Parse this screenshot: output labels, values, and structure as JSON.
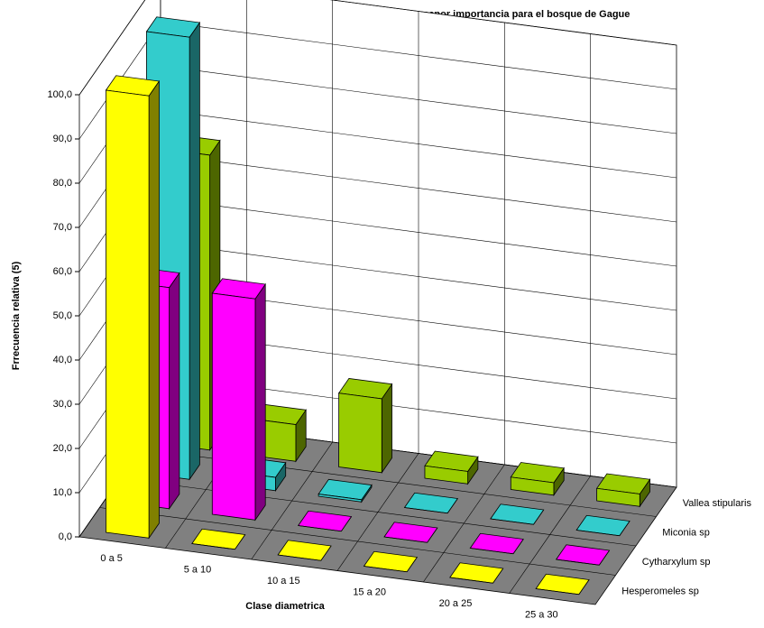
{
  "chart_data": {
    "type": "bar3d",
    "title": "Gráfico Nº 7 Distribucion diametrica de las 4 especies de menor importancia para el bosque de Gague",
    "x_label": "Clase diametrica",
    "y_label": "Frrecuencia relativa (5)",
    "categories": [
      "0 a 5",
      "5 a 10",
      "10 a 15",
      "15 a 20",
      "20 a 25",
      "25 a 30"
    ],
    "series": [
      {
        "name": "Hesperomeles sp",
        "color": "#ffff00",
        "side_color": "#808000",
        "values": [
          100,
          0,
          0,
          0,
          0,
          0
        ]
      },
      {
        "name": "Cytharxylum sp",
        "color": "#ff00ff",
        "side_color": "#800080",
        "values": [
          50,
          50,
          0,
          0,
          0,
          0
        ]
      },
      {
        "name": "Miconia sp",
        "color": "#33cccc",
        "side_color": "#1a6666",
        "values": [
          100,
          3,
          0.5,
          0,
          0,
          0
        ]
      },
      {
        "name": "Vallea stipularis",
        "color": "#99cc00",
        "side_color": "#4d6600",
        "values": [
          66.7,
          8.3,
          16.7,
          2.8,
          2.8,
          2.8
        ]
      }
    ],
    "ylim": [
      0,
      100
    ],
    "yticks": [
      {
        "value": 0,
        "label": "0,0"
      },
      {
        "value": 10,
        "label": "10,0"
      },
      {
        "value": 20,
        "label": "20,0"
      },
      {
        "value": 30,
        "label": "30,0"
      },
      {
        "value": 40,
        "label": "40,0"
      },
      {
        "value": 50,
        "label": "50,0"
      },
      {
        "value": 60,
        "label": "60,0"
      },
      {
        "value": 70,
        "label": "70,0"
      },
      {
        "value": 80,
        "label": "80,0"
      },
      {
        "value": 90,
        "label": "90,0"
      },
      {
        "value": 100,
        "label": "100,0"
      }
    ],
    "grid": true
  }
}
